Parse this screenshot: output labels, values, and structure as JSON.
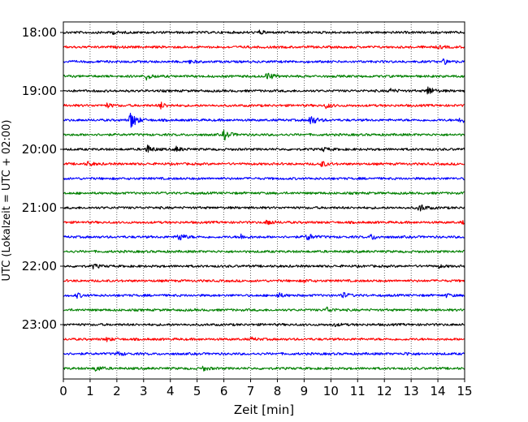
{
  "chart_data": {
    "type": "line",
    "title": "",
    "xlabel": "Zeit  [min]",
    "ylabel": "UTC (Lokalzeit = UTC + 02:00)",
    "xlim": [
      0,
      15
    ],
    "x_ticks": [
      0,
      1,
      2,
      3,
      4,
      5,
      6,
      7,
      8,
      9,
      10,
      11,
      12,
      13,
      14,
      15
    ],
    "y_tick_labels": [
      "18:00",
      "19:00",
      "20:00",
      "21:00",
      "22:00",
      "23:00"
    ],
    "grid": "vertical dotted",
    "trace_interval_min": 15,
    "colors": [
      "#000000",
      "#ff0000",
      "#0000ff",
      "#008000"
    ],
    "traces": [
      {
        "start": "18:00",
        "color": "#000000",
        "events": [
          {
            "t": 1.8,
            "amp": 0.2
          },
          {
            "t": 7.3,
            "amp": 0.25
          }
        ]
      },
      {
        "start": "18:15",
        "color": "#ff0000",
        "events": [
          {
            "t": 14.0,
            "amp": 0.2
          }
        ]
      },
      {
        "start": "18:30",
        "color": "#0000ff",
        "events": [
          {
            "t": 4.7,
            "amp": 0.2
          },
          {
            "t": 14.2,
            "amp": 0.35
          }
        ]
      },
      {
        "start": "18:45",
        "color": "#008000",
        "events": [
          {
            "t": 3.1,
            "amp": 0.45
          },
          {
            "t": 7.6,
            "amp": 0.6
          }
        ]
      },
      {
        "start": "19:00",
        "color": "#000000",
        "events": [
          {
            "t": 12.2,
            "amp": 0.3
          },
          {
            "t": 13.6,
            "amp": 0.7
          }
        ]
      },
      {
        "start": "19:15",
        "color": "#ff0000",
        "events": [
          {
            "t": 1.6,
            "amp": 0.3
          },
          {
            "t": 3.6,
            "amp": 0.5
          },
          {
            "t": 9.8,
            "amp": 0.35
          }
        ]
      },
      {
        "start": "19:30",
        "color": "#0000ff",
        "events": [
          {
            "t": 2.5,
            "amp": 1.4
          },
          {
            "t": 9.2,
            "amp": 0.9
          },
          {
            "t": 14.8,
            "amp": 0.5
          }
        ]
      },
      {
        "start": "19:45",
        "color": "#008000",
        "events": [
          {
            "t": 6.0,
            "amp": 0.7
          }
        ]
      },
      {
        "start": "20:00",
        "color": "#000000",
        "events": [
          {
            "t": 3.1,
            "amp": 0.65
          },
          {
            "t": 4.2,
            "amp": 0.35
          },
          {
            "t": 9.7,
            "amp": 0.25
          }
        ]
      },
      {
        "start": "20:15",
        "color": "#ff0000",
        "events": [
          {
            "t": 0.9,
            "amp": 0.3
          },
          {
            "t": 9.6,
            "amp": 0.5
          }
        ]
      },
      {
        "start": "20:30",
        "color": "#0000ff",
        "events": []
      },
      {
        "start": "20:45",
        "color": "#008000",
        "events": []
      },
      {
        "start": "21:00",
        "color": "#000000",
        "events": [
          {
            "t": 13.3,
            "amp": 0.6
          }
        ]
      },
      {
        "start": "21:15",
        "color": "#ff0000",
        "events": [
          {
            "t": 7.6,
            "amp": 0.45
          },
          {
            "t": 14.9,
            "amp": 0.2
          }
        ]
      },
      {
        "start": "21:30",
        "color": "#0000ff",
        "events": [
          {
            "t": 4.3,
            "amp": 0.6
          },
          {
            "t": 6.6,
            "amp": 0.4
          },
          {
            "t": 9.1,
            "amp": 0.55
          },
          {
            "t": 11.5,
            "amp": 0.4
          }
        ]
      },
      {
        "start": "21:45",
        "color": "#008000",
        "events": []
      },
      {
        "start": "22:00",
        "color": "#000000",
        "events": [
          {
            "t": 1.1,
            "amp": 0.3
          },
          {
            "t": 14.0,
            "amp": 0.2
          }
        ]
      },
      {
        "start": "22:15",
        "color": "#ff0000",
        "events": [
          {
            "t": 9.0,
            "amp": 0.2
          }
        ]
      },
      {
        "start": "22:30",
        "color": "#0000ff",
        "events": [
          {
            "t": 0.5,
            "amp": 0.3
          },
          {
            "t": 8.0,
            "amp": 0.35
          },
          {
            "t": 10.4,
            "amp": 0.45
          },
          {
            "t": 14.3,
            "amp": 0.2
          }
        ]
      },
      {
        "start": "22:45",
        "color": "#008000",
        "events": [
          {
            "t": 9.8,
            "amp": 0.45
          }
        ]
      },
      {
        "start": "23:00",
        "color": "#000000",
        "events": [
          {
            "t": 10.1,
            "amp": 0.2
          }
        ]
      },
      {
        "start": "23:15",
        "color": "#ff0000",
        "events": [
          {
            "t": 1.6,
            "amp": 0.25
          },
          {
            "t": 7.0,
            "amp": 0.2
          }
        ]
      },
      {
        "start": "23:30",
        "color": "#0000ff",
        "events": [
          {
            "t": 2.0,
            "amp": 0.3
          },
          {
            "t": 12.8,
            "amp": 0.2
          }
        ]
      },
      {
        "start": "23:45",
        "color": "#008000",
        "events": [
          {
            "t": 1.2,
            "amp": 0.4
          },
          {
            "t": 5.2,
            "amp": 0.3
          }
        ]
      }
    ]
  }
}
